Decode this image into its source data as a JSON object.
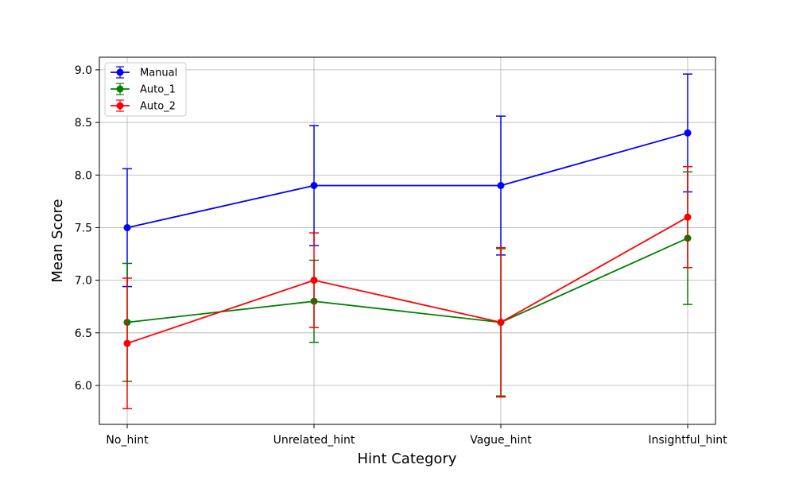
{
  "chart_data": {
    "type": "line",
    "title": "",
    "xlabel": "Hint Category",
    "ylabel": "Mean Score",
    "categories": [
      "No_hint",
      "Unrelated_hint",
      "Vague_hint",
      "Insightful_hint"
    ],
    "ylim": [
      5.63,
      9.12
    ],
    "yticks": [
      "6.0",
      "6.5",
      "7.0",
      "7.5",
      "8.0",
      "8.5",
      "9.0"
    ],
    "grid": true,
    "legend_position": "top-left",
    "error_bars": true,
    "series": [
      {
        "name": "Manual",
        "color": "#0000ff",
        "values": [
          7.5,
          7.9,
          7.9,
          8.4
        ],
        "errors": [
          0.56,
          0.57,
          0.66,
          0.56
        ]
      },
      {
        "name": "Auto_1",
        "color": "#008000",
        "values": [
          6.6,
          6.8,
          6.6,
          7.4
        ],
        "errors": [
          0.56,
          0.39,
          0.7,
          0.63
        ]
      },
      {
        "name": "Auto_2",
        "color": "#ff0000",
        "values": [
          6.4,
          7.0,
          6.6,
          7.6
        ],
        "errors": [
          0.62,
          0.45,
          0.71,
          0.48
        ]
      }
    ]
  }
}
